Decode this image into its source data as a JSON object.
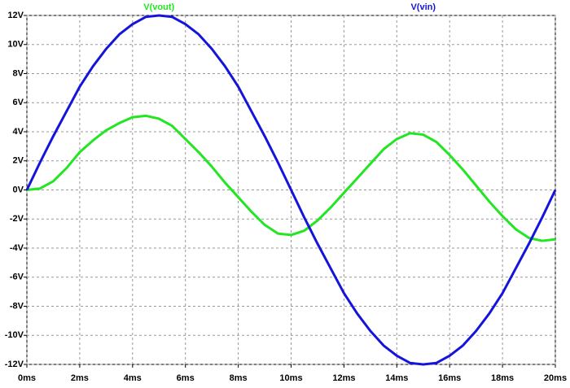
{
  "chart_data": {
    "type": "line",
    "x": [
      0,
      0.5,
      1,
      1.5,
      2,
      2.5,
      3,
      3.5,
      4,
      4.5,
      5,
      5.5,
      6,
      6.5,
      7,
      7.5,
      8,
      8.5,
      9,
      9.5,
      10,
      10.5,
      11,
      11.5,
      12,
      12.5,
      13,
      13.5,
      14,
      14.5,
      15,
      15.5,
      16,
      16.5,
      17,
      17.5,
      18,
      18.5,
      19,
      19.5,
      20
    ],
    "series": [
      {
        "name": "V(vout)",
        "color": "#22e622",
        "values": [
          0,
          0.1,
          0.6,
          1.5,
          2.6,
          3.4,
          4.1,
          4.6,
          5.0,
          5.1,
          4.9,
          4.4,
          3.5,
          2.6,
          1.6,
          0.5,
          -0.5,
          -1.5,
          -2.4,
          -3.0,
          -3.1,
          -2.8,
          -2.1,
          -1.2,
          -0.2,
          0.8,
          1.8,
          2.8,
          3.5,
          3.9,
          3.8,
          3.3,
          2.4,
          1.4,
          0.3,
          -0.8,
          -1.8,
          -2.7,
          -3.3,
          -3.5,
          -3.4
        ]
      },
      {
        "name": "V(vin)",
        "color": "#1414dc",
        "values": [
          0,
          1.9,
          3.7,
          5.4,
          7.1,
          8.5,
          9.7,
          10.7,
          11.4,
          11.9,
          12,
          11.9,
          11.4,
          10.7,
          9.7,
          8.5,
          7.1,
          5.4,
          3.7,
          1.9,
          0,
          -1.9,
          -3.7,
          -5.4,
          -7.1,
          -8.5,
          -9.7,
          -10.7,
          -11.4,
          -11.9,
          -12,
          -11.9,
          -11.4,
          -10.7,
          -9.7,
          -8.5,
          -7.1,
          -5.4,
          -3.7,
          -1.9,
          0
        ]
      }
    ],
    "xlim": [
      0,
      20
    ],
    "xticks": [
      {
        "value": 0,
        "label": "0ms"
      },
      {
        "value": 2,
        "label": "2ms"
      },
      {
        "value": 4,
        "label": "4ms"
      },
      {
        "value": 6,
        "label": "6ms"
      },
      {
        "value": 8,
        "label": "8ms"
      },
      {
        "value": 10,
        "label": "10ms"
      },
      {
        "value": 12,
        "label": "12ms"
      },
      {
        "value": 14,
        "label": "14ms"
      },
      {
        "value": 16,
        "label": "16ms"
      },
      {
        "value": 18,
        "label": "18ms"
      },
      {
        "value": 20,
        "label": "20ms"
      }
    ],
    "ylim": [
      -12,
      12
    ],
    "yticks": [
      {
        "value": -12,
        "label": "-12V"
      },
      {
        "value": -10,
        "label": "-10V"
      },
      {
        "value": -8,
        "label": "-8V"
      },
      {
        "value": -6,
        "label": "-6V"
      },
      {
        "value": -4,
        "label": "-4V"
      },
      {
        "value": -2,
        "label": "-2V"
      },
      {
        "value": 0,
        "label": "0V"
      },
      {
        "value": 2,
        "label": "2V"
      },
      {
        "value": 4,
        "label": "4V"
      },
      {
        "value": 6,
        "label": "6V"
      },
      {
        "value": 8,
        "label": "8V"
      },
      {
        "value": 10,
        "label": "10V"
      },
      {
        "value": 12,
        "label": "12V"
      }
    ],
    "grid": true
  }
}
